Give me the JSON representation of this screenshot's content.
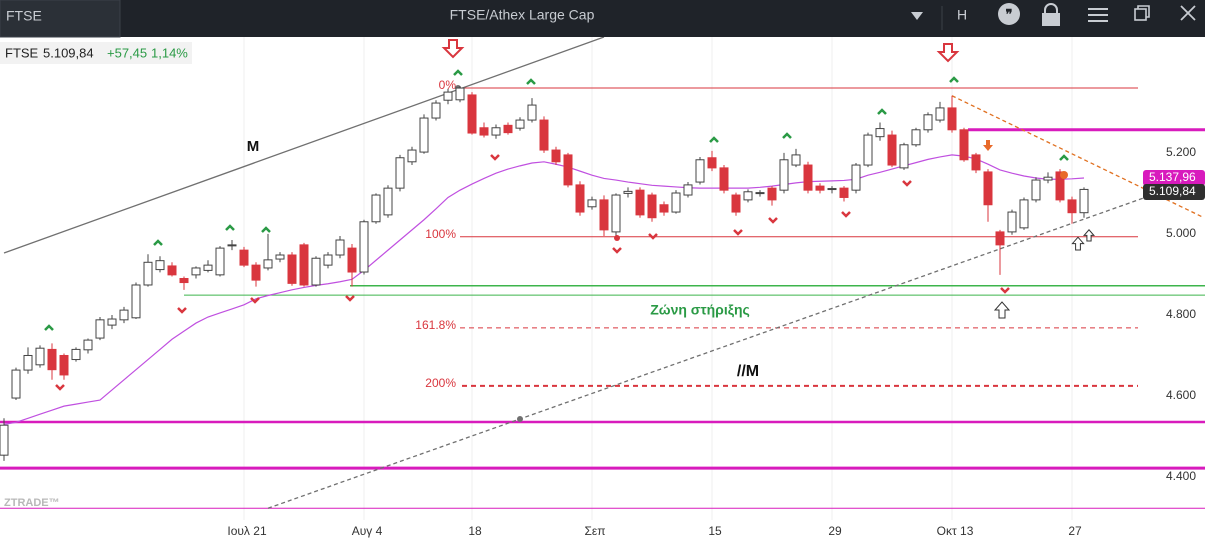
{
  "topbar": {
    "tab": "FTSE",
    "interval": "H"
  },
  "quote": {
    "symbol": "FTSE",
    "last": "5.109,84",
    "change": "+57,45",
    "change_pct": "1,14%"
  },
  "watermark": "ZTRADE™",
  "chart_data": {
    "type": "candlestick",
    "title": "FTSE/Athex Large Cap",
    "categories": [
      null,
      null,
      null,
      null,
      null,
      null,
      null,
      null,
      null,
      null,
      null,
      null,
      null,
      null,
      null,
      null,
      null,
      null,
      null,
      null,
      "Ιουλ 21",
      null,
      null,
      null,
      null,
      null,
      null,
      null,
      null,
      null,
      "Αυγ 4",
      null,
      null,
      null,
      null,
      null,
      null,
      null,
      null,
      "18",
      null,
      null,
      null,
      null,
      null,
      null,
      null,
      null,
      null,
      "Σεπ",
      null,
      null,
      null,
      null,
      null,
      null,
      null,
      null,
      null,
      "15",
      null,
      null,
      null,
      null,
      null,
      null,
      null,
      null,
      null,
      "29",
      null,
      null,
      null,
      null,
      null,
      null,
      null,
      null,
      null,
      "Οκτ 13",
      null,
      null,
      null,
      null,
      null,
      null,
      null,
      null,
      null,
      "27",
      null
    ],
    "ohlc": [
      [
        4454,
        4545,
        4440,
        4528
      ],
      [
        4595,
        4670,
        4590,
        4664
      ],
      [
        4664,
        4720,
        4655,
        4700
      ],
      [
        4677,
        4725,
        4670,
        4718
      ],
      [
        4715,
        4730,
        4640,
        4665
      ],
      [
        4700,
        4705,
        4640,
        4652
      ],
      [
        4690,
        4720,
        4685,
        4715
      ],
      [
        4714,
        4742,
        4705,
        4738
      ],
      [
        4743,
        4795,
        4738,
        4788
      ],
      [
        4775,
        4800,
        4765,
        4790
      ],
      [
        4788,
        4820,
        4780,
        4812
      ],
      [
        4793,
        4880,
        4790,
        4874
      ],
      [
        4874,
        4950,
        4870,
        4930
      ],
      [
        4912,
        4945,
        4905,
        4934
      ],
      [
        4921,
        4930,
        4895,
        4899
      ],
      [
        4890,
        4895,
        4862,
        4880
      ],
      [
        4899,
        4920,
        4890,
        4916
      ],
      [
        4910,
        4935,
        4905,
        4923
      ],
      [
        4899,
        4970,
        4895,
        4965
      ],
      [
        4972,
        4985,
        4960,
        4973
      ],
      [
        4960,
        4968,
        4918,
        4923
      ],
      [
        4923,
        4930,
        4870,
        4886
      ],
      [
        4916,
        5000,
        4910,
        4936
      ],
      [
        4938,
        4955,
        4930,
        4948
      ],
      [
        4948,
        4955,
        4872,
        4878
      ],
      [
        4973,
        4978,
        4870,
        4874
      ],
      [
        4874,
        4945,
        4870,
        4940
      ],
      [
        4923,
        4955,
        4915,
        4948
      ],
      [
        4948,
        4995,
        4940,
        4985
      ],
      [
        4965,
        4975,
        4870,
        4906
      ],
      [
        4906,
        5035,
        4900,
        5030
      ],
      [
        5030,
        5100,
        5025,
        5096
      ],
      [
        5047,
        5120,
        5040,
        5113
      ],
      [
        5113,
        5195,
        5105,
        5188
      ],
      [
        5178,
        5215,
        5170,
        5207
      ],
      [
        5202,
        5295,
        5198,
        5286
      ],
      [
        5286,
        5330,
        5280,
        5323
      ],
      [
        5330,
        5358,
        5320,
        5350
      ],
      [
        5331,
        5365,
        5325,
        5360
      ],
      [
        5343,
        5350,
        5245,
        5249
      ],
      [
        5262,
        5275,
        5238,
        5244
      ],
      [
        5244,
        5270,
        5235,
        5262
      ],
      [
        5268,
        5275,
        5245,
        5250
      ],
      [
        5261,
        5288,
        5255,
        5281
      ],
      [
        5281,
        5335,
        5275,
        5318
      ],
      [
        5281,
        5290,
        5200,
        5207
      ],
      [
        5207,
        5215,
        5170,
        5178
      ],
      [
        5195,
        5200,
        5115,
        5121
      ],
      [
        5121,
        5130,
        5045,
        5054
      ],
      [
        5067,
        5092,
        5060,
        5084
      ],
      [
        5084,
        5095,
        4995,
        5010
      ],
      [
        5005,
        5100,
        4990,
        5096
      ],
      [
        5100,
        5115,
        5090,
        5105
      ],
      [
        5108,
        5115,
        5040,
        5047
      ],
      [
        5096,
        5102,
        5030,
        5040
      ],
      [
        5072,
        5080,
        5045,
        5054
      ],
      [
        5054,
        5108,
        5050,
        5101
      ],
      [
        5096,
        5128,
        5090,
        5121
      ],
      [
        5128,
        5190,
        5122,
        5183
      ],
      [
        5188,
        5205,
        5155,
        5163
      ],
      [
        5163,
        5170,
        5100,
        5108
      ],
      [
        5096,
        5102,
        5045,
        5054
      ],
      [
        5084,
        5110,
        5078,
        5104
      ],
      [
        5100,
        5108,
        5092,
        5102
      ],
      [
        5113,
        5118,
        5070,
        5084
      ],
      [
        5108,
        5200,
        5100,
        5183
      ],
      [
        5170,
        5210,
        5165,
        5195
      ],
      [
        5170,
        5178,
        5100,
        5108
      ],
      [
        5118,
        5125,
        5100,
        5108
      ],
      [
        5110,
        5118,
        5100,
        5112
      ],
      [
        5113,
        5118,
        5080,
        5090
      ],
      [
        5108,
        5175,
        5100,
        5170
      ],
      [
        5170,
        5250,
        5165,
        5244
      ],
      [
        5240,
        5275,
        5230,
        5260
      ],
      [
        5244,
        5255,
        5165,
        5170
      ],
      [
        5163,
        5225,
        5158,
        5220
      ],
      [
        5220,
        5262,
        5215,
        5257
      ],
      [
        5257,
        5300,
        5250,
        5294
      ],
      [
        5281,
        5326,
        5275,
        5311
      ],
      [
        5311,
        5341,
        5250,
        5257
      ],
      [
        5257,
        5262,
        5178,
        5183
      ],
      [
        5195,
        5200,
        5150,
        5158
      ],
      [
        5153,
        5160,
        5030,
        5072
      ],
      [
        5005,
        5010,
        4899,
        4973
      ],
      [
        5005,
        5060,
        4998,
        5054
      ],
      [
        5015,
        5090,
        5010,
        5084
      ],
      [
        5084,
        5140,
        5078,
        5133
      ],
      [
        5133,
        5152,
        5125,
        5140
      ],
      [
        5153,
        5160,
        5078,
        5084
      ],
      [
        5084,
        5092,
        5025,
        5052.39
      ],
      [
        5052.39,
        5115,
        5040,
        5109.84
      ]
    ],
    "up_color": "#ffffff",
    "down_color": "#d9363e",
    "moving_average": {
      "color": "#c050e0",
      "values": [
        4530,
        4535,
        4545,
        4555,
        4565,
        4575,
        4580,
        4585,
        4590,
        4615,
        4640,
        4665,
        4690,
        4715,
        4740,
        4760,
        4780,
        4795,
        4805,
        4815,
        4825,
        4840,
        4848,
        4855,
        4862,
        4868,
        4873,
        4877,
        4882,
        4888,
        4910,
        4935,
        4960,
        4985,
        5010,
        5035,
        5062,
        5090,
        5108,
        5123,
        5137,
        5150,
        5160,
        5168,
        5175,
        5178,
        5172,
        5165,
        5155,
        5145,
        5137,
        5133,
        5128,
        5124,
        5120,
        5118,
        5116,
        5114,
        5113,
        5113,
        5113,
        5113,
        5113,
        5115,
        5118,
        5122,
        5126,
        5129,
        5130,
        5131,
        5132,
        5135,
        5145,
        5152,
        5160,
        5168,
        5176,
        5184,
        5190,
        5195,
        5192,
        5185,
        5172,
        5158,
        5150,
        5143,
        5138,
        5135,
        5135,
        5136,
        5137.96
      ]
    },
    "levels": [
      {
        "value": 5360,
        "label": "0%",
        "color": "#d9363e",
        "dash": false
      },
      {
        "value": 4993,
        "label": "100%",
        "color": "#d9363e",
        "dash": false
      },
      {
        "value": 4768,
        "label": "161.8%",
        "color": "#d9363e",
        "dash": true
      },
      {
        "value": 4625,
        "label": "200%",
        "color": "#d9363e",
        "dash": true
      },
      {
        "value": 4872,
        "color": "#3cb44b",
        "dash": false
      },
      {
        "value": 4849,
        "color": "#3cb44b",
        "dash": false
      },
      {
        "value": 5257,
        "color": "#d81bbd",
        "dash": false
      },
      {
        "value": 4536,
        "color": "#d81bbd",
        "dash": false
      },
      {
        "value": 4422,
        "color": "#d81bbd",
        "dash": false
      },
      {
        "value": 4323,
        "color": "#d81bbd",
        "dash": false
      }
    ],
    "trendlines": [
      {
        "x": [
          0,
          50
        ],
        "values": [
          4953,
          5486
        ],
        "color": "#707070",
        "dash": false
      },
      {
        "x": [
          22,
          95
        ],
        "values": [
          4323,
          5089
        ],
        "color": "#707070",
        "dash": true
      },
      {
        "x": [
          79,
          100
        ],
        "values": [
          5341,
          5040
        ],
        "color": "#e07020",
        "dash": true
      }
    ],
    "annotations": [
      {
        "text": "M"
      },
      {
        "text": "//M"
      },
      {
        "text": "Ζώνη στήριξης"
      }
    ],
    "price_tags": [
      {
        "value": 5137.96,
        "label": "5.137,96",
        "color": "#d81bbd"
      },
      {
        "value": 5109.84,
        "label": "5.109,84",
        "color": "#2f2f2f"
      }
    ],
    "ylim": [
      4294,
      5486
    ],
    "yticks": [
      {
        "value": 4400,
        "label": "4.400"
      },
      {
        "value": 4600,
        "label": "4.600"
      },
      {
        "value": 4800,
        "label": "4.800"
      },
      {
        "value": 5000,
        "label": "5.000"
      },
      {
        "value": 5200,
        "label": "5.200"
      }
    ],
    "grid": true
  }
}
